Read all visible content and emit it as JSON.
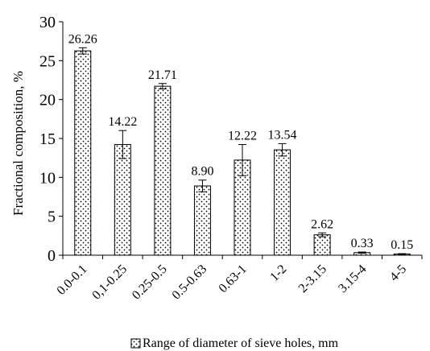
{
  "chart_data": {
    "type": "bar",
    "title": "",
    "xlabel": "",
    "ylabel": "Fractional composition, %",
    "ylim": [
      0,
      30
    ],
    "yticks": [
      0,
      5,
      10,
      15,
      20,
      25,
      30
    ],
    "grid": false,
    "legend_position": "bottom",
    "categories": [
      "0.0-0.1",
      "0,1-0.25",
      "0.25-0.5",
      "0.5-0.63",
      "0.63-1",
      "1-2",
      "2-3.15",
      "3.15-4",
      "4-5"
    ],
    "series": [
      {
        "name": "Range of diameter of sieve holes, mm",
        "values": [
          26.26,
          14.22,
          21.71,
          8.9,
          12.22,
          13.54,
          2.62,
          0.33,
          0.15
        ],
        "value_labels": [
          "26.26",
          "14.22",
          "21.71",
          "8.90",
          "12.22",
          "13.54",
          "2.62",
          "0.33",
          "0.15"
        ],
        "error": [
          0.4,
          1.8,
          0.35,
          0.75,
          2.0,
          0.8,
          0.25,
          0.08,
          0.05
        ]
      }
    ],
    "colors": {
      "bar_fill": "#ffffff",
      "bar_stroke": "#000000",
      "dots": "#000000",
      "axis": "#000000"
    },
    "pattern": "dotted"
  }
}
